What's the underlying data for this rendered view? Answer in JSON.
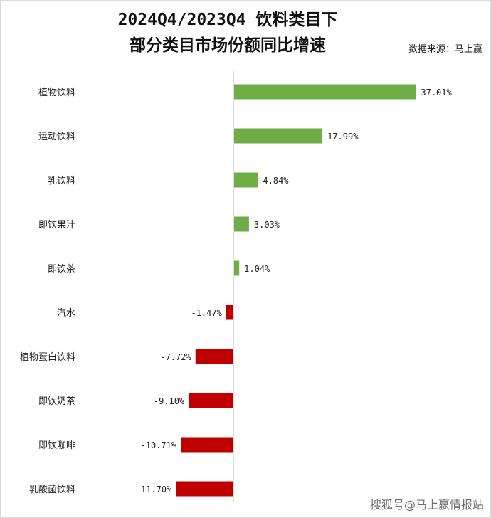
{
  "title_line1": "2024Q4/2023Q4 饮料类目下",
  "title_line2": "部分类目市场份额同比增速",
  "source": "数据来源：马上赢",
  "watermark": "搜狐号@马上赢情报站",
  "colors": {
    "positive": "#70ad47",
    "negative": "#c00000",
    "axis": "#d0d0d0",
    "text": "#222222"
  },
  "chart_data": {
    "type": "bar",
    "orientation": "horizontal",
    "title": "2024Q4/2023Q4 饮料类目下 部分类目市场份额同比增速",
    "categories": [
      "植物饮料",
      "运动饮料",
      "乳饮料",
      "即饮果汁",
      "即饮茶",
      "汽水",
      "植物蛋白饮料",
      "即饮奶茶",
      "即饮咖啡",
      "乳酸菌饮料"
    ],
    "values": [
      37.01,
      17.99,
      4.84,
      3.03,
      1.04,
      -1.47,
      -7.72,
      -9.1,
      -10.71,
      -11.7
    ],
    "labels": [
      "37.01%",
      "17.99%",
      "4.84%",
      "3.03%",
      "1.04%",
      "-1.47%",
      "-7.72%",
      "-9.10%",
      "-10.71%",
      "-11.70%"
    ],
    "unit": "%",
    "grid": false,
    "legend": "none"
  }
}
